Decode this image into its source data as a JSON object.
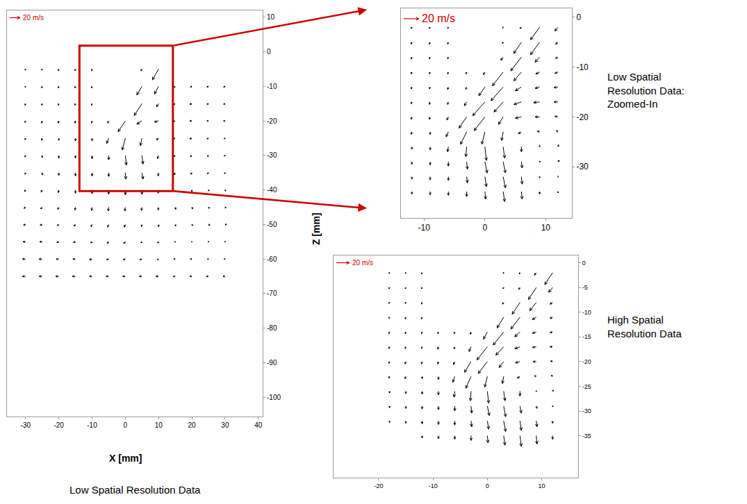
{
  "chart_data": [
    {
      "type": "quiver",
      "title": "Low Spatial Resolution Data",
      "x_label": "X [mm]",
      "y_label": "Z [mm]",
      "xlim": [
        -35.6,
        41.3
      ],
      "ylim": [
        -105.6,
        12
      ],
      "xticks": [
        -30,
        -20,
        -10,
        0,
        10,
        20,
        30,
        40
      ],
      "yticks": [
        10,
        0,
        -10,
        -20,
        -30,
        -40,
        -50,
        -60,
        -70,
        -80,
        -90,
        -100
      ],
      "grid": false,
      "reference_arrow": {
        "value": 20,
        "label": "20 m/s"
      },
      "x": [
        -30,
        -25,
        -20,
        -15,
        -10,
        -5,
        0,
        5,
        10,
        15,
        20,
        25,
        30
      ],
      "z": [
        -5,
        -10,
        -15,
        -20,
        -25,
        -30,
        -35,
        -40,
        -45,
        -50,
        -55,
        -60,
        -65
      ],
      "u": [
        [
          -1,
          -1,
          -1,
          -1,
          -1,
          null,
          null,
          -2,
          -12,
          null,
          null,
          null,
          null
        ],
        [
          -1,
          -1,
          -1,
          -1,
          -1,
          null,
          null,
          -10,
          -8,
          -3,
          -3,
          -3,
          -3
        ],
        [
          -1,
          -1,
          -1,
          -1,
          -1,
          null,
          null,
          -15,
          -4,
          -4,
          -4,
          -3,
          -3
        ],
        [
          -1,
          -1,
          -1,
          -1,
          -1,
          -2,
          -14,
          -10,
          -8,
          -5,
          -4,
          -3,
          -3
        ],
        [
          -1,
          -1,
          0,
          0,
          0,
          -4,
          -6,
          -3,
          -4,
          -4,
          -4,
          -3,
          -2
        ],
        [
          -1,
          0,
          0,
          0,
          0,
          0,
          2,
          2,
          -2,
          -3,
          -3,
          -2,
          -2
        ],
        [
          -1,
          0,
          0,
          0,
          0,
          0,
          1,
          2,
          -1,
          -2,
          -2,
          -2,
          -1
        ],
        [
          -2,
          -2,
          -1,
          0,
          0,
          0,
          0,
          0,
          -1,
          -1,
          0,
          1,
          1
        ],
        [
          -3,
          -3,
          -2,
          -1,
          -1,
          -1,
          -1,
          -1,
          -1,
          1,
          2,
          2,
          2
        ],
        [
          -4,
          -4,
          -3,
          -3,
          -2,
          -2,
          -2,
          -1,
          0,
          1,
          2,
          3,
          3
        ],
        [
          -5,
          -5,
          -4,
          -4,
          -3,
          -3,
          -3,
          -2,
          -2,
          -1,
          0,
          1,
          1
        ],
        [
          -6,
          -6,
          -5,
          -5,
          -5,
          -4,
          -4,
          -4,
          -3,
          -3,
          -3,
          -2,
          -2
        ],
        [
          -6,
          -6,
          -6,
          -6,
          -5,
          -5,
          -5,
          -5,
          -5,
          -4,
          -4,
          -4,
          -4
        ]
      ],
      "w": [
        [
          -2,
          -2,
          -3,
          -3,
          -3,
          null,
          null,
          -3,
          -20,
          null,
          null,
          null,
          null
        ],
        [
          -2,
          -3,
          -3,
          -3,
          -3,
          null,
          null,
          -16,
          -14,
          -2,
          -1,
          -1,
          -1
        ],
        [
          -3,
          -3,
          -3,
          -3,
          -3,
          null,
          null,
          -22,
          -6,
          -2,
          -1,
          -1,
          -1
        ],
        [
          -3,
          -4,
          -4,
          -4,
          -4,
          -4,
          -20,
          -6,
          -2,
          -1,
          0,
          0,
          0
        ],
        [
          -3,
          -4,
          -4,
          -5,
          -5,
          -10,
          -22,
          -14,
          -3,
          -1,
          -1,
          -1,
          -1
        ],
        [
          -3,
          -4,
          -5,
          -5,
          -6,
          -8,
          -18,
          -16,
          -6,
          -2,
          -2,
          -2,
          -1
        ],
        [
          -3,
          -4,
          -5,
          -6,
          -6,
          -7,
          -12,
          -12,
          -6,
          -4,
          -3,
          -2,
          -2
        ],
        [
          -3,
          -4,
          -5,
          -6,
          -7,
          -8,
          -9,
          -8,
          -6,
          -4,
          -3,
          -2,
          -2
        ],
        [
          -2,
          -3,
          -4,
          -5,
          -6,
          -7,
          -7,
          -6,
          -5,
          -4,
          -3,
          -2,
          -1
        ],
        [
          -1,
          -1,
          -2,
          -3,
          -4,
          -5,
          -5,
          -4,
          -4,
          -3,
          -2,
          -1,
          0
        ],
        [
          0,
          0,
          -1,
          -1,
          -2,
          -3,
          -3,
          -2,
          -2,
          -1,
          -1,
          0,
          0
        ],
        [
          0,
          0,
          0,
          0,
          -1,
          -1,
          -1,
          -1,
          -1,
          0,
          0,
          0,
          0
        ],
        [
          0,
          0,
          0,
          0,
          0,
          0,
          0,
          0,
          0,
          0,
          0,
          0,
          0
        ]
      ]
    },
    {
      "type": "quiver",
      "title": "Low Spatial Resolution Data: Zoomed-In",
      "xlim": [
        -13.8,
        14.3
      ],
      "ylim": [
        -40.3,
        1.8
      ],
      "xticks": [
        -10,
        0,
        10
      ],
      "yticks": [
        0,
        -10,
        -20,
        -30
      ],
      "grid": false,
      "reference_arrow": {
        "value": 20,
        "label": "20 m/s"
      },
      "x": [
        -12,
        -9,
        -6,
        -3,
        0,
        3,
        6,
        9,
        12
      ],
      "z": [
        -2,
        -5,
        -8,
        -11,
        -14,
        -17,
        -20,
        -23,
        -26,
        -29,
        -32,
        -35
      ],
      "u": [
        [
          -1,
          -1,
          -1,
          null,
          null,
          -1,
          -2,
          -12,
          -4
        ],
        [
          -1,
          -1,
          -1,
          null,
          null,
          -1,
          -10,
          -12,
          -3
        ],
        [
          -1,
          -1,
          -1,
          null,
          null,
          -3,
          -14,
          -6,
          -3
        ],
        [
          -1,
          -1,
          -1,
          -1,
          -2,
          -14,
          -10,
          -5,
          -4
        ],
        [
          -1,
          -1,
          -1,
          -1,
          -8,
          -16,
          -8,
          -6,
          -5
        ],
        [
          -1,
          -1,
          -1,
          -3,
          -16,
          -12,
          -10,
          -8,
          -5
        ],
        [
          -1,
          -1,
          -2,
          -10,
          -14,
          -6,
          -8,
          -6,
          -4
        ],
        [
          -1,
          0,
          -3,
          -8,
          -4,
          -2,
          -4,
          -3,
          -2
        ],
        [
          0,
          0,
          -1,
          -1,
          2,
          2,
          0,
          0,
          1
        ],
        [
          0,
          0,
          0,
          1,
          3,
          3,
          1,
          1,
          2
        ],
        [
          0,
          0,
          0,
          1,
          2,
          3,
          1,
          0,
          1
        ],
        [
          0,
          0,
          0,
          0,
          1,
          2,
          1,
          0,
          0
        ]
      ],
      "w": [
        [
          -2,
          -2,
          -2,
          null,
          null,
          -1,
          -2,
          -20,
          -6
        ],
        [
          -3,
          -3,
          -3,
          null,
          null,
          -2,
          -18,
          -20,
          -3
        ],
        [
          -3,
          -3,
          -3,
          null,
          null,
          -5,
          -22,
          -8,
          -2
        ],
        [
          -3,
          -3,
          -3,
          -3,
          -4,
          -22,
          -14,
          -3,
          -2
        ],
        [
          -3,
          -3,
          -4,
          -4,
          -14,
          -22,
          -6,
          -2,
          -1
        ],
        [
          -3,
          -4,
          -4,
          -6,
          -22,
          -16,
          -4,
          -1,
          0
        ],
        [
          -4,
          -4,
          -5,
          -18,
          -22,
          -12,
          -2,
          0,
          1
        ],
        [
          -4,
          -4,
          -8,
          -20,
          -20,
          -14,
          -3,
          1,
          2
        ],
        [
          -4,
          -5,
          -8,
          -16,
          -22,
          -18,
          -8,
          2,
          3
        ],
        [
          -4,
          -5,
          -7,
          -12,
          -18,
          -18,
          -10,
          0,
          2
        ],
        [
          -4,
          -5,
          -6,
          -10,
          -16,
          -18,
          -12,
          -2,
          0
        ],
        [
          -4,
          -5,
          -6,
          -8,
          -12,
          -16,
          -12,
          -4,
          -2
        ]
      ]
    },
    {
      "type": "quiver",
      "title": "High Spatial Resolution Data",
      "xlim": [
        -28.3,
        16.7
      ],
      "ylim": [
        -43.5,
        1.5
      ],
      "xticks": [
        -20,
        -10,
        0,
        10
      ],
      "yticks": [
        0,
        -5,
        -10,
        -15,
        -20,
        -25,
        -30,
        -35
      ],
      "grid": false,
      "reference_arrow": {
        "value": 20,
        "label": "20 m/s"
      },
      "x": [
        -18,
        -15,
        -12,
        -9,
        -6,
        -3,
        0,
        3,
        6,
        9,
        12
      ],
      "z": [
        -2,
        -5,
        -8,
        -11,
        -14,
        -17,
        -20,
        -23,
        -26,
        -29,
        -32,
        -35
      ],
      "u": [
        [
          -1,
          -1,
          -1,
          null,
          null,
          null,
          null,
          -1,
          -1,
          -3,
          -12
        ],
        [
          -1,
          -1,
          -1,
          null,
          null,
          null,
          null,
          -1,
          -2,
          -12,
          -6
        ],
        [
          -1,
          -1,
          -1,
          null,
          null,
          null,
          null,
          -2,
          -12,
          -10,
          -4
        ],
        [
          -1,
          -1,
          -1,
          null,
          null,
          null,
          null,
          -10,
          -14,
          -6,
          -4
        ],
        [
          -1,
          -1,
          -1,
          -1,
          -1,
          -1,
          -6,
          -16,
          -8,
          -6,
          -4
        ],
        [
          -1,
          -1,
          -1,
          -1,
          -1,
          -3,
          -16,
          -12,
          -8,
          -6,
          -4
        ],
        [
          -1,
          -1,
          -1,
          -1,
          -2,
          -10,
          -14,
          -7,
          -7,
          -5,
          -3
        ],
        [
          -1,
          -1,
          0,
          0,
          -3,
          -8,
          -4,
          -2,
          -4,
          -3,
          -2
        ],
        [
          0,
          0,
          0,
          0,
          -1,
          -1,
          2,
          2,
          0,
          0,
          1
        ],
        [
          0,
          0,
          0,
          0,
          0,
          1,
          3,
          3,
          2,
          1,
          1
        ],
        [
          0,
          0,
          0,
          0,
          0,
          1,
          2,
          3,
          2,
          1,
          0
        ],
        [
          null,
          null,
          0,
          0,
          0,
          0,
          1,
          2,
          2,
          1,
          0
        ]
      ],
      "w": [
        [
          -1,
          -1,
          -2,
          null,
          null,
          null,
          null,
          -1,
          -2,
          -4,
          -20
        ],
        [
          -2,
          -2,
          -2,
          null,
          null,
          null,
          null,
          -2,
          -3,
          -20,
          -8
        ],
        [
          -2,
          -2,
          -3,
          null,
          null,
          null,
          null,
          -3,
          -20,
          -14,
          -3
        ],
        [
          -2,
          -3,
          -3,
          null,
          null,
          null,
          null,
          -18,
          -20,
          -4,
          -2
        ],
        [
          -3,
          -3,
          -3,
          -3,
          -3,
          -4,
          -12,
          -22,
          -8,
          -2,
          -1
        ],
        [
          -3,
          -3,
          -3,
          -4,
          -4,
          -8,
          -22,
          -14,
          -3,
          -1,
          0
        ],
        [
          -3,
          -4,
          -4,
          -4,
          -5,
          -18,
          -20,
          -10,
          -2,
          0,
          1
        ],
        [
          -3,
          -4,
          -4,
          -5,
          -10,
          -20,
          -18,
          -12,
          -3,
          1,
          2
        ],
        [
          -3,
          -4,
          -5,
          -6,
          -10,
          -16,
          -20,
          -16,
          -8,
          1,
          2
        ],
        [
          -3,
          -4,
          -5,
          -6,
          -8,
          -12,
          -16,
          -18,
          -12,
          -4,
          -1
        ],
        [
          -3,
          -4,
          -5,
          -6,
          -7,
          -10,
          -14,
          -18,
          -16,
          -10,
          -4
        ],
        [
          null,
          null,
          -4,
          -5,
          -6,
          -8,
          -12,
          -16,
          -18,
          -14,
          -6
        ]
      ]
    }
  ]
}
